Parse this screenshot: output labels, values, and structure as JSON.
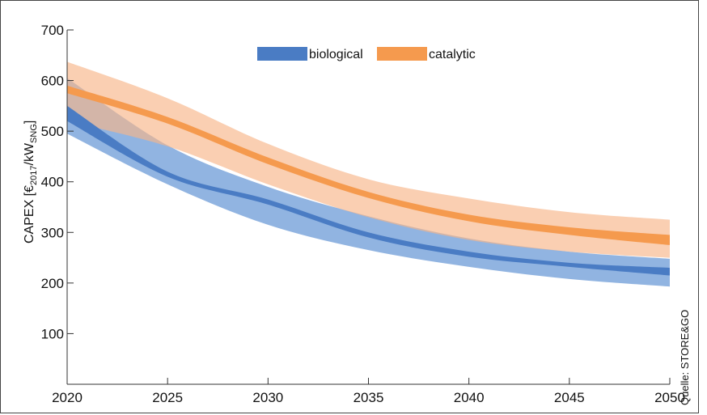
{
  "source": "Quelle: STORE&GO",
  "chart_data": {
    "type": "area",
    "title": "",
    "ylabel": {
      "parts": [
        "CAPEX [€",
        "2017",
        "/kW",
        "SNG",
        "]"
      ]
    },
    "xlabel": "",
    "xlim": [
      2020,
      2050
    ],
    "ylim": [
      0,
      700
    ],
    "x_ticks": [
      2020,
      2025,
      2030,
      2035,
      2040,
      2045,
      2050
    ],
    "y_ticks": [
      100,
      200,
      300,
      400,
      500,
      600,
      700
    ],
    "grid": false,
    "legend_position": "top-center",
    "series": [
      {
        "name": "biological",
        "color_band": "#7ea7dc",
        "color_line": "#4a7cc4",
        "x": [
          2020,
          2025,
          2030,
          2035,
          2040,
          2045,
          2050
        ],
        "low": [
          495,
          395,
          315,
          265,
          232,
          208,
          193
        ],
        "high": [
          605,
          472,
          390,
          332,
          288,
          262,
          248
        ],
        "mid_low": [
          520,
          410,
          355,
          290,
          252,
          232,
          215
        ],
        "mid_high": [
          550,
          420,
          365,
          300,
          262,
          240,
          230
        ]
      },
      {
        "name": "catalytic",
        "color_band": "#f8b588",
        "color_line": "#f59a4e",
        "x": [
          2020,
          2025,
          2030,
          2035,
          2040,
          2045,
          2050
        ],
        "low": [
          520,
          470,
          395,
          330,
          285,
          262,
          250
        ],
        "high": [
          637,
          565,
          475,
          405,
          367,
          340,
          325
        ],
        "mid_low": [
          575,
          515,
          435,
          368,
          322,
          295,
          275
        ],
        "mid_high": [
          590,
          528,
          448,
          380,
          335,
          310,
          295
        ]
      }
    ]
  }
}
